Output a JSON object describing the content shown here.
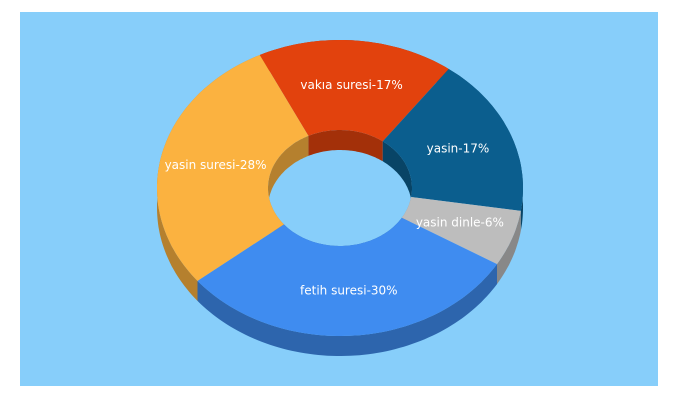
{
  "chart_data": {
    "type": "pie",
    "values": [
      17,
      17,
      6,
      30,
      28
    ],
    "value_labels": [
      "vakıa suresi-17%",
      "yasin-17%",
      "yasin dinle-6%",
      "fetih suresi-30%",
      "yasin suresi-28%"
    ],
    "colors": [
      "#e2420d",
      "#0b5e8e",
      "#bdbdbd",
      "#3f8cf0",
      "#fbb240"
    ]
  }
}
